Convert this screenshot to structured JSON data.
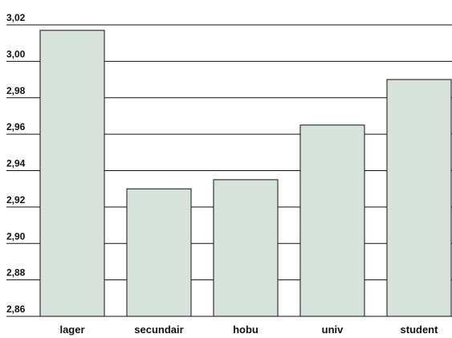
{
  "chart_data": {
    "type": "bar",
    "categories": [
      "lager",
      "secundair",
      "hobu",
      "univ",
      "student"
    ],
    "values": [
      3.017,
      2.93,
      2.935,
      2.965,
      2.99
    ],
    "ylim": [
      2.86,
      3.02
    ],
    "yticks": [
      2.86,
      2.88,
      2.9,
      2.92,
      2.94,
      2.96,
      2.98,
      3.0,
      3.02
    ],
    "ytick_labels": [
      "2,86",
      "2,88",
      "2,90",
      "2,92",
      "2,94",
      "2,96",
      "2,98",
      "3,00",
      "3,02"
    ],
    "grid": true,
    "colors": {
      "bar_fill": "#d6e2da",
      "bar_stroke": "#111111",
      "grid": "#111111"
    }
  }
}
